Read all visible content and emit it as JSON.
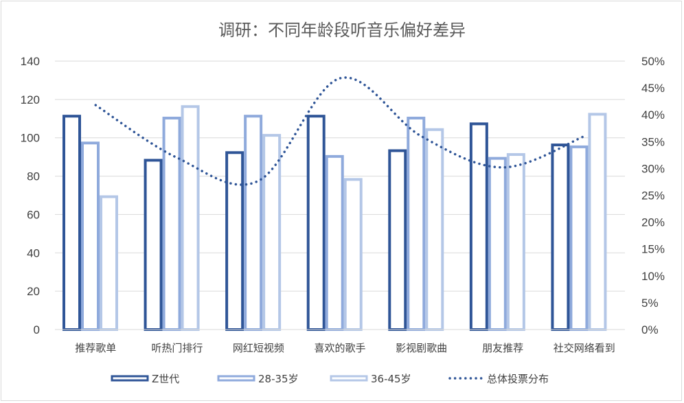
{
  "chart_data": {
    "type": "bar",
    "title": "调研：不同年龄段听音乐偏好差异",
    "categories": [
      "推荐歌单",
      "听热门排行",
      "网红短视频",
      "喜欢的歌手",
      "影视剧歌曲",
      "朋友推荐",
      "社交网络看到"
    ],
    "series": [
      {
        "name": "Z世代",
        "type": "bar",
        "axis": "left",
        "color": "#2f5597",
        "values": [
          112,
          89,
          93,
          112,
          94,
          108,
          97
        ]
      },
      {
        "name": "28-35岁",
        "type": "bar",
        "axis": "left",
        "color": "#8faadc",
        "values": [
          98,
          111,
          112,
          91,
          111,
          90,
          96
        ]
      },
      {
        "name": "36-45岁",
        "type": "bar",
        "axis": "left",
        "color": "#b4c7e7",
        "values": [
          70,
          117,
          102,
          79,
          105,
          92,
          113
        ]
      },
      {
        "name": "总体投票分布",
        "type": "line",
        "style": "dotted",
        "smooth": true,
        "axis": "right",
        "color": "#2f5597",
        "values": [
          41.8,
          32.0,
          27.7,
          46.8,
          36.0,
          30.2,
          36.0
        ]
      }
    ],
    "y_left": {
      "min": 0,
      "max": 140,
      "step": 20,
      "ticks": [
        "0",
        "20",
        "40",
        "60",
        "80",
        "100",
        "120",
        "140"
      ]
    },
    "y_right": {
      "min": 0,
      "max": 50,
      "step": 5,
      "ticks": [
        "0%",
        "5%",
        "10%",
        "15%",
        "20%",
        "25%",
        "30%",
        "35%",
        "40%",
        "45%",
        "50%"
      ]
    },
    "grid": true,
    "legend": "bottom"
  }
}
